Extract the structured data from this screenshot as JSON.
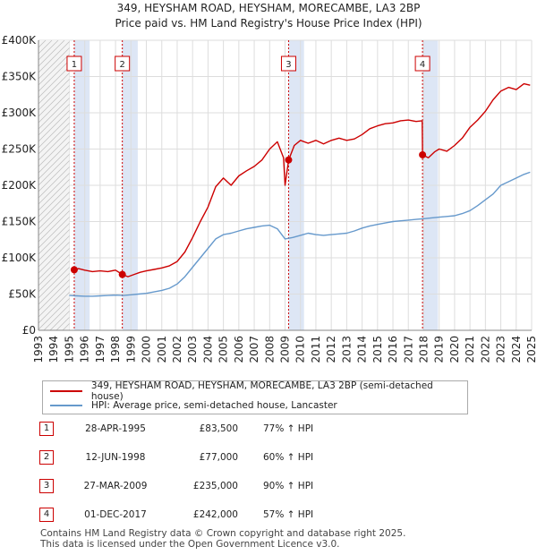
{
  "chart_data": {
    "type": "line",
    "title": "349, HEYSHAM ROAD, HEYSHAM, MORECAMBE, LA3 2BP",
    "subtitle": "Price paid vs. HM Land Registry's House Price Index (HPI)",
    "xlabel": "",
    "ylabel": "",
    "xlim": [
      1993,
      2025
    ],
    "ylim": [
      0,
      400000
    ],
    "x_ticks": [
      1993,
      1994,
      1995,
      1996,
      1997,
      1998,
      1999,
      2000,
      2001,
      2002,
      2003,
      2004,
      2005,
      2006,
      2007,
      2008,
      2009,
      2010,
      2011,
      2012,
      2013,
      2014,
      2015,
      2016,
      2017,
      2018,
      2019,
      2020,
      2021,
      2022,
      2023,
      2024,
      2025
    ],
    "y_ticks": [
      {
        "value": 0,
        "label": "£0"
      },
      {
        "value": 50000,
        "label": "£50K"
      },
      {
        "value": 100000,
        "label": "£100K"
      },
      {
        "value": 150000,
        "label": "£150K"
      },
      {
        "value": 200000,
        "label": "£200K"
      },
      {
        "value": 250000,
        "label": "£250K"
      },
      {
        "value": 300000,
        "label": "£300K"
      },
      {
        "value": 350000,
        "label": "£350K"
      },
      {
        "value": 400000,
        "label": "£400K"
      }
    ],
    "grid": true,
    "hatched_before": 1995.0,
    "series": [
      {
        "name": "349, HEYSHAM ROAD, HEYSHAM, MORECAMBE, LA3 2BP (semi-detached house)",
        "color": "#cc0000",
        "x": [
          1995.32,
          1995.6,
          1996.0,
          1996.5,
          1997.0,
          1997.5,
          1998.0,
          1998.44,
          1998.8,
          1999.2,
          1999.6,
          2000.0,
          2000.5,
          2001.0,
          2001.5,
          2002.0,
          2002.5,
          2003.0,
          2003.5,
          2004.0,
          2004.5,
          2005.0,
          2005.5,
          2006.0,
          2006.5,
          2007.0,
          2007.5,
          2008.0,
          2008.5,
          2008.9,
          2009.0,
          2009.23,
          2009.6,
          2010.0,
          2010.5,
          2011.0,
          2011.5,
          2012.0,
          2012.5,
          2013.0,
          2013.5,
          2014.0,
          2014.5,
          2015.0,
          2015.5,
          2016.0,
          2016.5,
          2017.0,
          2017.5,
          2017.9,
          2017.92,
          2018.3,
          2018.7,
          2019.0,
          2019.5,
          2020.0,
          2020.5,
          2021.0,
          2021.5,
          2022.0,
          2022.5,
          2023.0,
          2023.5,
          2024.0,
          2024.5,
          2024.9
        ],
        "y": [
          83500,
          85000,
          83000,
          81000,
          82000,
          81000,
          83000,
          77000,
          74000,
          77000,
          80000,
          82000,
          84000,
          86000,
          89000,
          95000,
          108000,
          128000,
          150000,
          170000,
          198000,
          210000,
          200000,
          213000,
          220000,
          226000,
          235000,
          250000,
          260000,
          238000,
          200000,
          235000,
          255000,
          262000,
          258000,
          262000,
          257000,
          262000,
          265000,
          262000,
          264000,
          270000,
          278000,
          282000,
          285000,
          286000,
          289000,
          290000,
          288000,
          289000,
          242000,
          238000,
          246000,
          250000,
          247000,
          255000,
          265000,
          280000,
          290000,
          302000,
          318000,
          330000,
          335000,
          332000,
          340000,
          338000
        ]
      },
      {
        "name": "HPI: Average price, semi-detached house, Lancaster",
        "color": "#6699cc",
        "x": [
          1995.0,
          1995.5,
          1996.0,
          1996.5,
          1997.0,
          1997.5,
          1998.0,
          1998.5,
          1999.0,
          1999.5,
          2000.0,
          2000.5,
          2001.0,
          2001.5,
          2002.0,
          2002.5,
          2003.0,
          2003.5,
          2004.0,
          2004.5,
          2005.0,
          2005.5,
          2006.0,
          2006.5,
          2007.0,
          2007.5,
          2008.0,
          2008.5,
          2009.0,
          2009.5,
          2010.0,
          2010.5,
          2011.0,
          2011.5,
          2012.0,
          2012.5,
          2013.0,
          2013.5,
          2014.0,
          2014.5,
          2015.0,
          2015.5,
          2016.0,
          2016.5,
          2017.0,
          2017.5,
          2018.0,
          2018.5,
          2019.0,
          2019.5,
          2020.0,
          2020.5,
          2021.0,
          2021.5,
          2022.0,
          2022.5,
          2023.0,
          2023.5,
          2024.0,
          2024.5,
          2024.9
        ],
        "y": [
          48000,
          47500,
          47000,
          47000,
          47500,
          48000,
          48500,
          48000,
          49000,
          50000,
          51000,
          53000,
          55000,
          58000,
          64000,
          74000,
          87000,
          100000,
          113000,
          126000,
          132000,
          134000,
          137000,
          140000,
          142000,
          144000,
          145000,
          140000,
          126000,
          128000,
          131000,
          134000,
          132000,
          131000,
          132000,
          133000,
          134000,
          137000,
          141000,
          144000,
          146000,
          148000,
          150000,
          151000,
          152000,
          153000,
          154000,
          155000,
          156000,
          157000,
          158000,
          161000,
          165000,
          172000,
          180000,
          188000,
          200000,
          205000,
          210000,
          215000,
          218000
        ]
      }
    ],
    "transactions": [
      {
        "num": "1",
        "x": 1995.32,
        "price": 83500
      },
      {
        "num": "2",
        "x": 1998.44,
        "price": 77000
      },
      {
        "num": "3",
        "x": 2009.23,
        "price": 235000
      },
      {
        "num": "4",
        "x": 2017.92,
        "price": 242000
      }
    ]
  },
  "legend": {
    "property_label": "349, HEYSHAM ROAD, HEYSHAM, MORECAMBE, LA3 2BP (semi-detached house)",
    "hpi_label": "HPI: Average price, semi-detached house, Lancaster"
  },
  "table": [
    {
      "num": "1",
      "date": "28-APR-1995",
      "price": "£83,500",
      "hpi": "77% ↑ HPI"
    },
    {
      "num": "2",
      "date": "12-JUN-1998",
      "price": "£77,000",
      "hpi": "60% ↑ HPI"
    },
    {
      "num": "3",
      "date": "27-MAR-2009",
      "price": "£235,000",
      "hpi": "90% ↑ HPI"
    },
    {
      "num": "4",
      "date": "01-DEC-2017",
      "price": "£242,000",
      "hpi": "57% ↑ HPI"
    }
  ],
  "footer": {
    "line1": "Contains HM Land Registry data © Crown copyright and database right 2025.",
    "line2": "This data is licensed under the Open Government Licence v3.0."
  },
  "colors": {
    "property": "#cc0000",
    "hpi": "#6699cc",
    "shade": "#dde6f5",
    "grid": "#dddddd",
    "marker_box": "#cc0000"
  }
}
